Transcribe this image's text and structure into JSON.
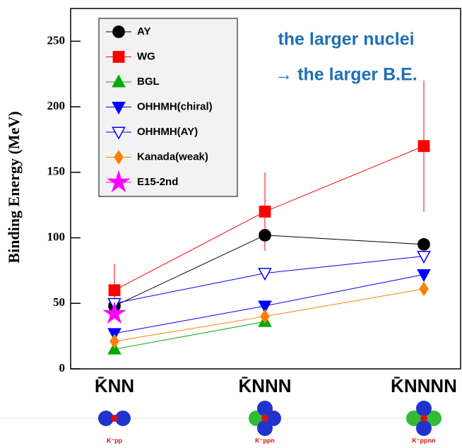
{
  "chart_data": {
    "type": "line",
    "y_label": "Binding Energy (MeV)",
    "annotations": [
      "the larger nuclei",
      "→ the larger B.E."
    ],
    "categories": [
      "K̄NN",
      "K̄NNN",
      "K̄NNNN"
    ],
    "molecule_labels": [
      "K⁻pp",
      "K⁻ppn",
      "K⁻ppnn"
    ],
    "ylim": [
      0,
      275
    ],
    "yticks": [
      0,
      50,
      100,
      150,
      200,
      250
    ],
    "series": [
      {
        "name": "AY",
        "color": "#000000",
        "marker": "circle",
        "values": [
          48,
          102,
          95
        ]
      },
      {
        "name": "WG",
        "color": "#ff0000",
        "marker": "square",
        "values": [
          60,
          120,
          170
        ],
        "errors": [
          20,
          30,
          50
        ]
      },
      {
        "name": "BGL",
        "color": "#00aa00",
        "marker": "triangle-up",
        "values": [
          15,
          36,
          null
        ]
      },
      {
        "name": "OHHMH(chiral)",
        "color": "#0000ff",
        "marker": "triangle-down",
        "values": [
          27,
          48,
          72
        ]
      },
      {
        "name": "OHHMH(AY)",
        "color": "#0000ff",
        "marker": "triangle-down-open",
        "values": [
          50,
          73,
          86
        ]
      },
      {
        "name": "Kanada(weak)",
        "color": "#ff8000",
        "marker": "diamond",
        "values": [
          21,
          40,
          61
        ]
      },
      {
        "name": "E15-2nd",
        "color": "#ff00ff",
        "marker": "star",
        "values": [
          42,
          null,
          null
        ]
      }
    ]
  }
}
